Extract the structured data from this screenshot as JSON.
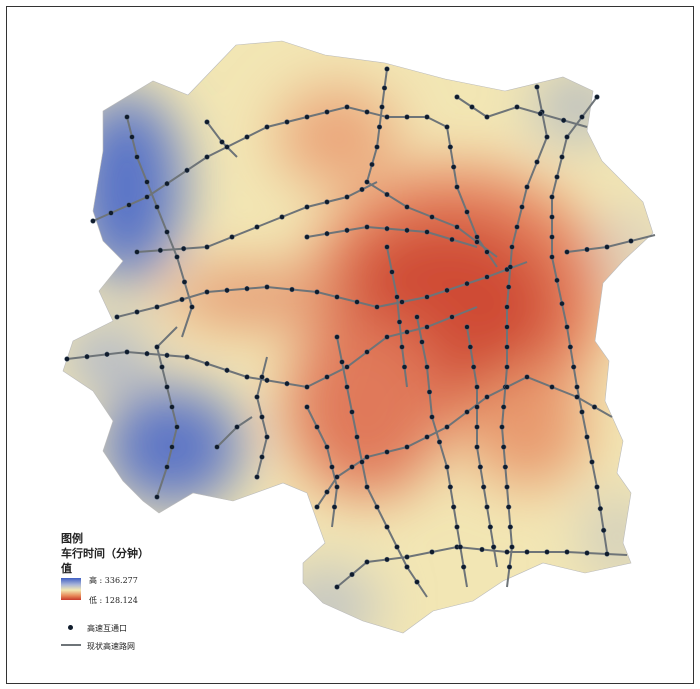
{
  "legend": {
    "title": "图例",
    "layer": "车行时间（分钟）",
    "field": "值",
    "high_label": "高 : 336.277",
    "low_label": "低 : 128.124",
    "ramp_colors": [
      "#3f5fc4",
      "#f3e8b0",
      "#c83a2a"
    ],
    "point_label": "高速互通口",
    "line_label": "现状高速路网"
  },
  "colors": {
    "road": "#6e7478",
    "interchange": "#101c2c"
  }
}
